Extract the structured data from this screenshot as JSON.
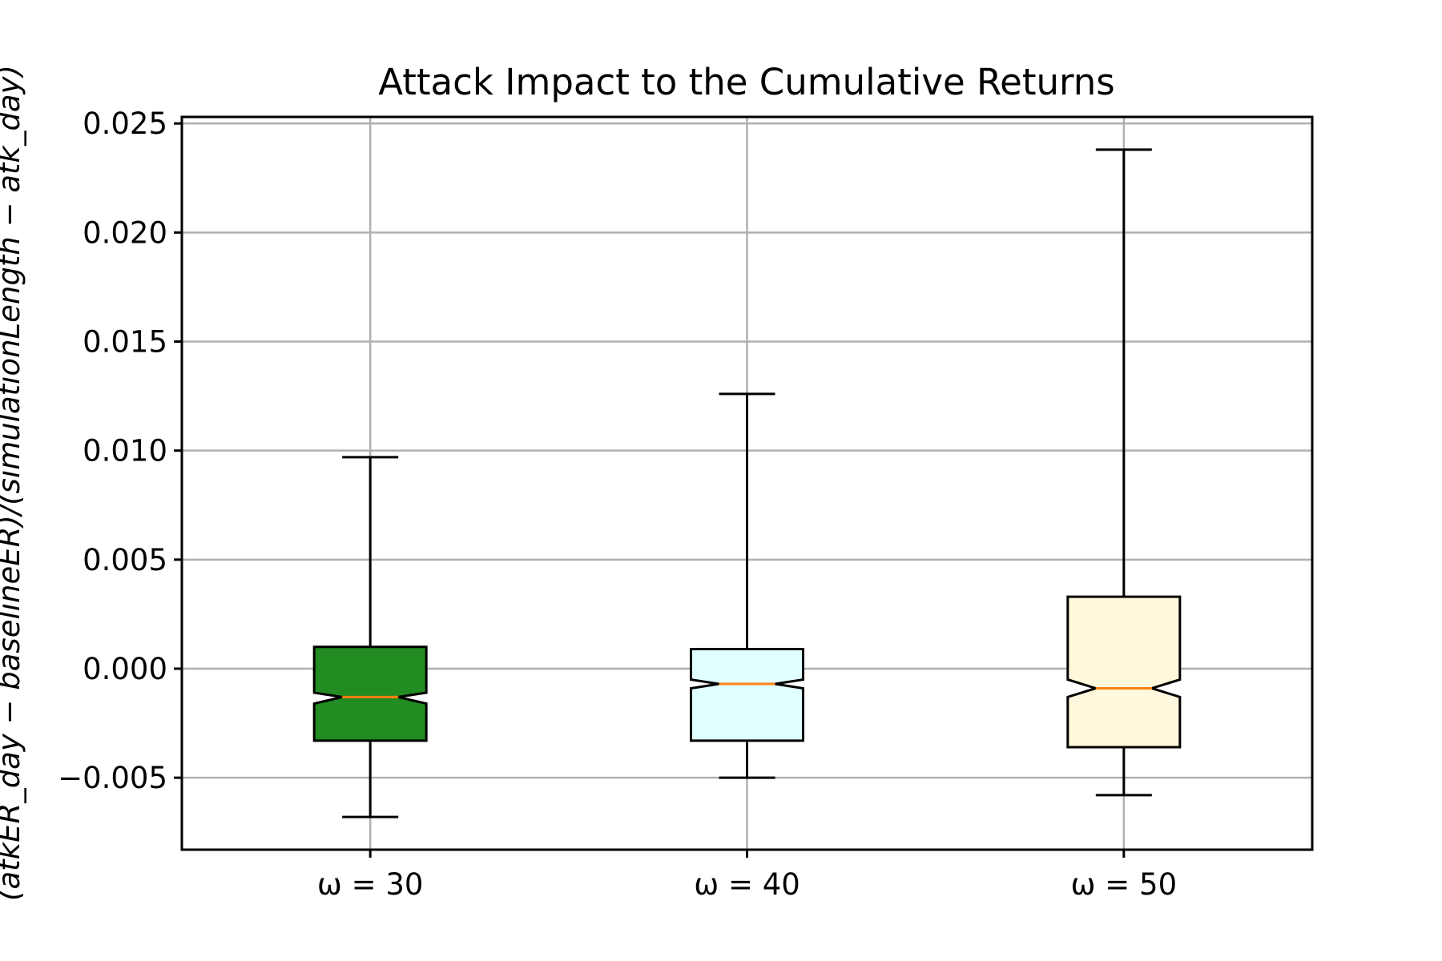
{
  "chart_data": {
    "type": "box",
    "title": "Attack Impact to the Cumulative Returns",
    "xlabel": "",
    "ylabel": "(atkER_day − baselineER)/(simulationLength − atk_day)",
    "ylim": [
      -0.0083,
      0.0253
    ],
    "yticks": [
      -0.005,
      0.0,
      0.005,
      0.01,
      0.015,
      0.02,
      0.025
    ],
    "ytick_labels": [
      "−0.005",
      "0.000",
      "0.005",
      "0.010",
      "0.015",
      "0.020",
      "0.025"
    ],
    "categories": [
      "ω = 30",
      "ω = 40",
      "ω = 50"
    ],
    "notched": true,
    "grid": true,
    "boxes": [
      {
        "label": "ω = 30",
        "whisker_low": -0.0068,
        "q1": -0.0033,
        "median": -0.0013,
        "q3": 0.001,
        "whisker_high": 0.0097,
        "notch_low": -0.0016,
        "notch_high": -0.0011,
        "fill": "#228b22"
      },
      {
        "label": "ω = 40",
        "whisker_low": -0.005,
        "q1": -0.0033,
        "median": -0.0007,
        "q3": 0.0009,
        "whisker_high": 0.0126,
        "notch_low": -0.0009,
        "notch_high": -0.0005,
        "fill": "#e0ffff"
      },
      {
        "label": "ω = 50",
        "whisker_low": -0.0058,
        "q1": -0.0036,
        "median": -0.0009,
        "q3": 0.0033,
        "whisker_high": 0.0238,
        "notch_low": -0.0013,
        "notch_high": -0.0005,
        "fill": "#fff8dc"
      }
    ],
    "median_color": "#ff7f0e"
  }
}
